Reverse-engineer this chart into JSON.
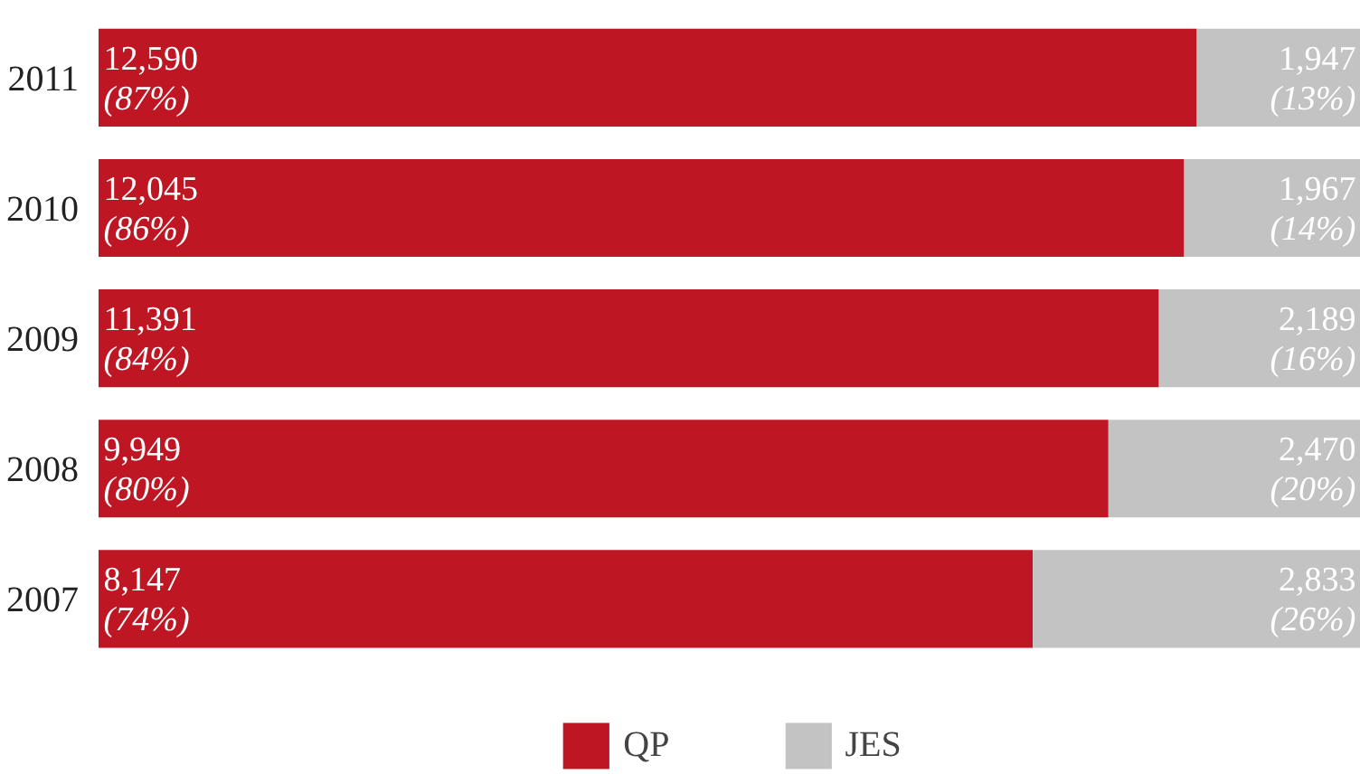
{
  "chart_data": {
    "type": "bar",
    "orientation": "horizontal",
    "stacked": true,
    "categories": [
      "2011",
      "2010",
      "2009",
      "2008",
      "2007"
    ],
    "xlim": [
      0,
      100
    ],
    "tick_labels": "y",
    "legend": "bottom",
    "series": [
      {
        "name": "QP",
        "color": "#be1622",
        "values": [
          87,
          86,
          84,
          80,
          74
        ],
        "value_labels": [
          "12,590\n(87%)",
          "12,045\n(86%)",
          "11,391\n(84%)",
          "9,949\n(80%)",
          "8,147\n(74%)"
        ]
      },
      {
        "name": "JES",
        "color": "#c3c3c4",
        "values": [
          13,
          14,
          16,
          20,
          26
        ],
        "value_labels": [
          "1,947\n(13%)",
          "1,967\n(14%)",
          "2,189\n(16%)",
          "2,470\n(20%)",
          "2,833\n(26%)"
        ]
      }
    ]
  }
}
